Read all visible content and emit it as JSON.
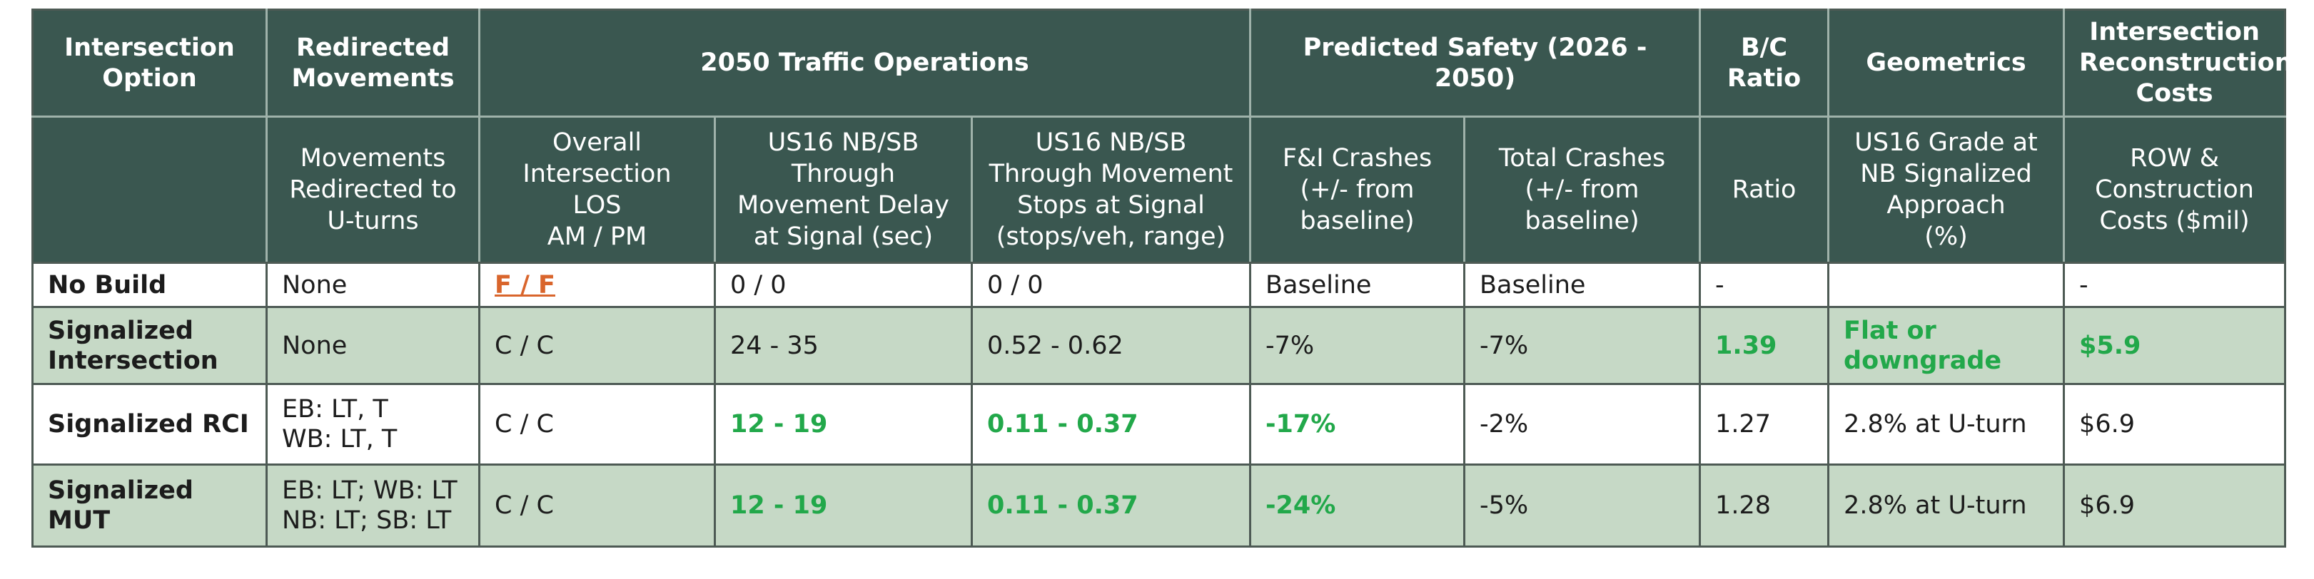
{
  "header_top": {
    "intersection_option": [
      "Intersection",
      "Option"
    ],
    "redirected_movements": [
      "Redirected",
      "Movements"
    ],
    "traffic_operations": "2050 Traffic Operations",
    "predicted_safety": "Predicted Safety (2026 - 2050)",
    "bc_ratio": [
      "B/C",
      "Ratio"
    ],
    "geometrics": "Geometrics",
    "reconstruction_costs": [
      "Intersection",
      "Reconstruction",
      "Costs"
    ]
  },
  "header_sub": {
    "movements_redirected": [
      "Movements",
      "Redirected to",
      "U-turns"
    ],
    "overall_los": [
      "Overall",
      "Intersection LOS",
      "AM / PM"
    ],
    "through_delay": [
      "US16 NB/SB",
      "Through",
      "Movement Delay",
      "at Signal (sec)"
    ],
    "through_stops": [
      "US16 NB/SB",
      "Through Movement",
      "Stops at Signal",
      "(stops/veh, range)"
    ],
    "fi_crashes": [
      "F&I Crashes",
      "(+/- from",
      "baseline)"
    ],
    "total_crashes": [
      "Total Crashes",
      "(+/- from",
      "baseline)"
    ],
    "ratio": "Ratio",
    "grade": [
      "US16 Grade at",
      "NB Signalized",
      "Approach",
      "(%)"
    ],
    "row_costs": [
      "ROW &",
      "Construction",
      "Costs ($mil)"
    ]
  },
  "rows": [
    {
      "option": [
        "No Build"
      ],
      "redirected": [
        "None"
      ],
      "los": "F / F",
      "delay": "0 / 0",
      "stops": "0 / 0",
      "fi": "Baseline",
      "total": "Baseline",
      "bc": "-",
      "grade": [
        ""
      ],
      "cost": "-"
    },
    {
      "option": [
        "Signalized",
        "Intersection"
      ],
      "redirected": [
        "None"
      ],
      "los": "C / C",
      "delay": "24 - 35",
      "stops": "0.52 - 0.62",
      "fi": "-7%",
      "total": "-7%",
      "bc": "1.39",
      "grade": [
        "Flat or",
        "downgrade"
      ],
      "cost": "$5.9"
    },
    {
      "option": [
        "Signalized RCI"
      ],
      "redirected": [
        "EB: LT, T",
        "WB: LT, T"
      ],
      "los": "C / C",
      "delay": "12 - 19",
      "stops": "0.11 - 0.37",
      "fi": "-17%",
      "total": "-2%",
      "bc": "1.27",
      "grade": [
        "2.8% at U-turn"
      ],
      "cost": "$6.9"
    },
    {
      "option": [
        "Signalized MUT"
      ],
      "redirected": [
        "EB: LT; WB: LT",
        "NB: LT; SB: LT"
      ],
      "los": "C / C",
      "delay": "12 - 19",
      "stops": "0.11 - 0.37",
      "fi": "-24%",
      "total": "-5%",
      "bc": "1.28",
      "grade": [
        "2.8% at U-turn"
      ],
      "cost": "$6.9"
    }
  ],
  "colors": {
    "header_bg": "#3a5750",
    "row_green": "#c6d9c6",
    "highlight_green": "#22a84a",
    "los_orange": "#d9652c"
  }
}
